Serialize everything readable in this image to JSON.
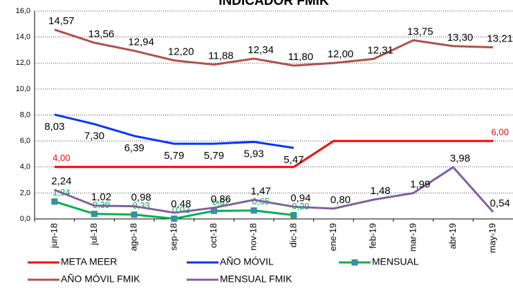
{
  "chart_data": {
    "type": "line",
    "title": "INDICADOR FMIK",
    "categories": [
      "jun-18",
      "jul-18",
      "ago-18",
      "sep-18",
      "oct-18",
      "nov-18",
      "dic-18",
      "ene-19",
      "feb-19",
      "mar-19",
      "abr-19",
      "may-19"
    ],
    "series": [
      {
        "name": "META MEER",
        "color": "#ff0000",
        "marker": "none",
        "label_color": "#ff0000",
        "values": [
          4,
          4,
          4,
          4,
          4,
          4,
          4,
          6,
          6,
          6,
          6,
          6
        ],
        "value_labels": [
          "4,00",
          null,
          null,
          null,
          null,
          null,
          null,
          null,
          null,
          null,
          null,
          "6,00"
        ]
      },
      {
        "name": "AÑO MÓVIL",
        "color": "#0033ff",
        "marker": "none",
        "label_color": "#000000",
        "values": [
          8.03,
          7.3,
          6.39,
          5.79,
          5.79,
          5.93,
          5.47,
          null,
          null,
          null,
          null,
          null
        ],
        "value_labels": [
          "8,03",
          "7,30",
          "6,39",
          "5,79",
          "5,79",
          "5,93",
          "5,47",
          null,
          null,
          null,
          null,
          null
        ]
      },
      {
        "name": "MENSUAL",
        "color": "#00b050",
        "marker": "square",
        "label_color": "#00b050",
        "values": [
          1.34,
          0.39,
          0.33,
          0.02,
          0.62,
          0.65,
          0.29,
          null,
          null,
          null,
          null,
          null
        ],
        "value_labels": [
          "1,34",
          "0,39",
          "0,33",
          "0,02",
          "0,62",
          "0,65",
          "0,29",
          null,
          null,
          null,
          null,
          null
        ]
      },
      {
        "name": "AÑO MÓVIL  FMIK",
        "color": "#b0504a",
        "marker": "none",
        "label_color": "#000000",
        "values": [
          14.57,
          13.56,
          12.94,
          12.2,
          11.88,
          12.34,
          11.8,
          12.0,
          12.31,
          13.75,
          13.3,
          13.21
        ],
        "value_labels": [
          "14,57",
          "13,56",
          "12,94",
          "12,20",
          "11,88",
          "12,34",
          "11,80",
          "12,00",
          "12,31",
          "13,75",
          "13,30",
          "13,21"
        ]
      },
      {
        "name": "MENSUAL FMIK",
        "color": "#7f5f9f",
        "marker": "none",
        "label_color": "#000000",
        "values": [
          2.24,
          1.02,
          0.98,
          0.48,
          0.86,
          1.47,
          0.94,
          0.8,
          1.48,
          1.99,
          3.98,
          0.54
        ],
        "value_labels": [
          "2,24",
          "1,02",
          "0,98",
          "0,48",
          "0,86",
          "1,47",
          "0,94",
          "0,80",
          "1,48",
          "1,99",
          "3,98",
          "0,54"
        ]
      }
    ],
    "ylim": [
      0,
      16
    ],
    "yticks": [
      {
        "value": 0,
        "label": "0,0"
      },
      {
        "value": 2,
        "label": "2,0"
      },
      {
        "value": 4,
        "label": "4,0"
      },
      {
        "value": 6,
        "label": "6,0"
      },
      {
        "value": 8,
        "label": "8,0"
      },
      {
        "value": 10,
        "label": "10,0"
      },
      {
        "value": 12,
        "label": "12,0"
      },
      {
        "value": 14,
        "label": "14,0"
      },
      {
        "value": 16,
        "label": "16,0"
      }
    ],
    "grid": true
  }
}
